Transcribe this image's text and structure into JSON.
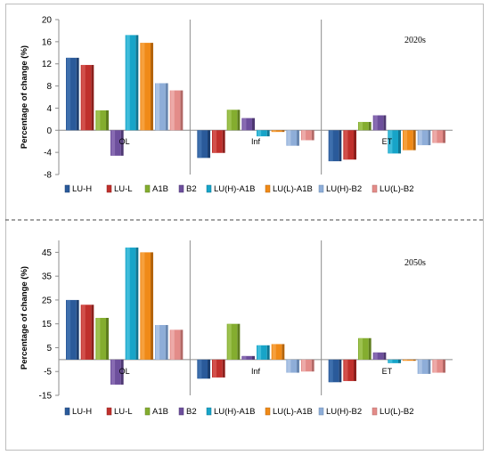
{
  "chart_data": [
    {
      "type": "bar",
      "title": "",
      "period_label": "2020s",
      "ylabel": "Percentage of change (%)",
      "xlabel": "",
      "ylim": [
        -8,
        20
      ],
      "yticks": [
        -8,
        -4,
        0,
        4,
        8,
        12,
        16,
        20
      ],
      "yticks_display": [
        "-8",
        "-4",
        "0",
        "4",
        "8",
        "12",
        "16",
        "20"
      ],
      "grid": false,
      "legend_position": "bottom",
      "categories": [
        "OL",
        "Inf",
        "ET"
      ],
      "series": [
        {
          "name": "LU-H",
          "values": [
            13.1,
            -5.0,
            -5.6
          ]
        },
        {
          "name": "LU-L",
          "values": [
            11.8,
            -4.1,
            -5.3
          ]
        },
        {
          "name": "A1B",
          "values": [
            3.6,
            3.7,
            1.5
          ]
        },
        {
          "name": "B2",
          "values": [
            -4.6,
            2.2,
            2.7
          ]
        },
        {
          "name": "LU(H)-A1B",
          "values": [
            17.2,
            -1.1,
            -4.2
          ]
        },
        {
          "name": "LU(L)-A1B",
          "values": [
            15.8,
            -0.3,
            -3.6
          ]
        },
        {
          "name": "LU(H)-B2",
          "values": [
            8.5,
            -2.8,
            -2.7
          ]
        },
        {
          "name": "LU(L)-B2",
          "values": [
            7.2,
            -1.8,
            -2.3
          ]
        }
      ]
    },
    {
      "type": "bar",
      "title": "",
      "period_label": "2050s",
      "ylabel": "Percentage of change (%)",
      "xlabel": "",
      "ylim": [
        -15,
        50
      ],
      "yticks": [
        -15,
        -5,
        5,
        15,
        25,
        35,
        45
      ],
      "yticks_display": [
        "-15",
        "-5",
        "5",
        "15",
        "25",
        "35",
        "45"
      ],
      "grid": false,
      "legend_position": "bottom",
      "categories": [
        "OL",
        "Inf",
        "ET"
      ],
      "series": [
        {
          "name": "LU-H",
          "values": [
            25.0,
            -8.0,
            -9.5
          ]
        },
        {
          "name": "LU-L",
          "values": [
            23.0,
            -7.5,
            -9.0
          ]
        },
        {
          "name": "A1B",
          "values": [
            17.5,
            15.0,
            9.0
          ]
        },
        {
          "name": "B2",
          "values": [
            -10.5,
            1.5,
            3.0
          ]
        },
        {
          "name": "LU(H)-A1B",
          "values": [
            47.0,
            6.0,
            -1.5
          ]
        },
        {
          "name": "LU(L)-A1B",
          "values": [
            45.0,
            6.5,
            -0.5
          ]
        },
        {
          "name": "LU(H)-B2",
          "values": [
            14.5,
            -5.5,
            -6.0
          ]
        },
        {
          "name": "LU(L)-B2",
          "values": [
            12.5,
            -5.0,
            -5.5
          ]
        }
      ]
    }
  ],
  "series_colors": [
    {
      "name": "LU-H",
      "top": "#4f81bd",
      "face": "#2a5a9a",
      "shade": "#1c3f70"
    },
    {
      "name": "LU-L",
      "top": "#e06b66",
      "face": "#c0302c",
      "shade": "#8c1f1c"
    },
    {
      "name": "A1B",
      "top": "#b2d36a",
      "face": "#84ad2f",
      "shade": "#5f7e1f"
    },
    {
      "name": "B2",
      "top": "#9f84c4",
      "face": "#6d4f9c",
      "shade": "#4e3872"
    },
    {
      "name": "LU(H)-A1B",
      "top": "#5fd0ea",
      "face": "#17a4c8",
      "shade": "#0f7592"
    },
    {
      "name": "LU(L)-A1B",
      "top": "#fbb35c",
      "face": "#f08a17",
      "shade": "#b4640c"
    },
    {
      "name": "LU(H)-B2",
      "top": "#c3d6ef",
      "face": "#8eadd8",
      "shade": "#6987b0"
    },
    {
      "name": "LU(L)-B2",
      "top": "#f6c3c1",
      "face": "#e38c89",
      "shade": "#b26866"
    }
  ]
}
